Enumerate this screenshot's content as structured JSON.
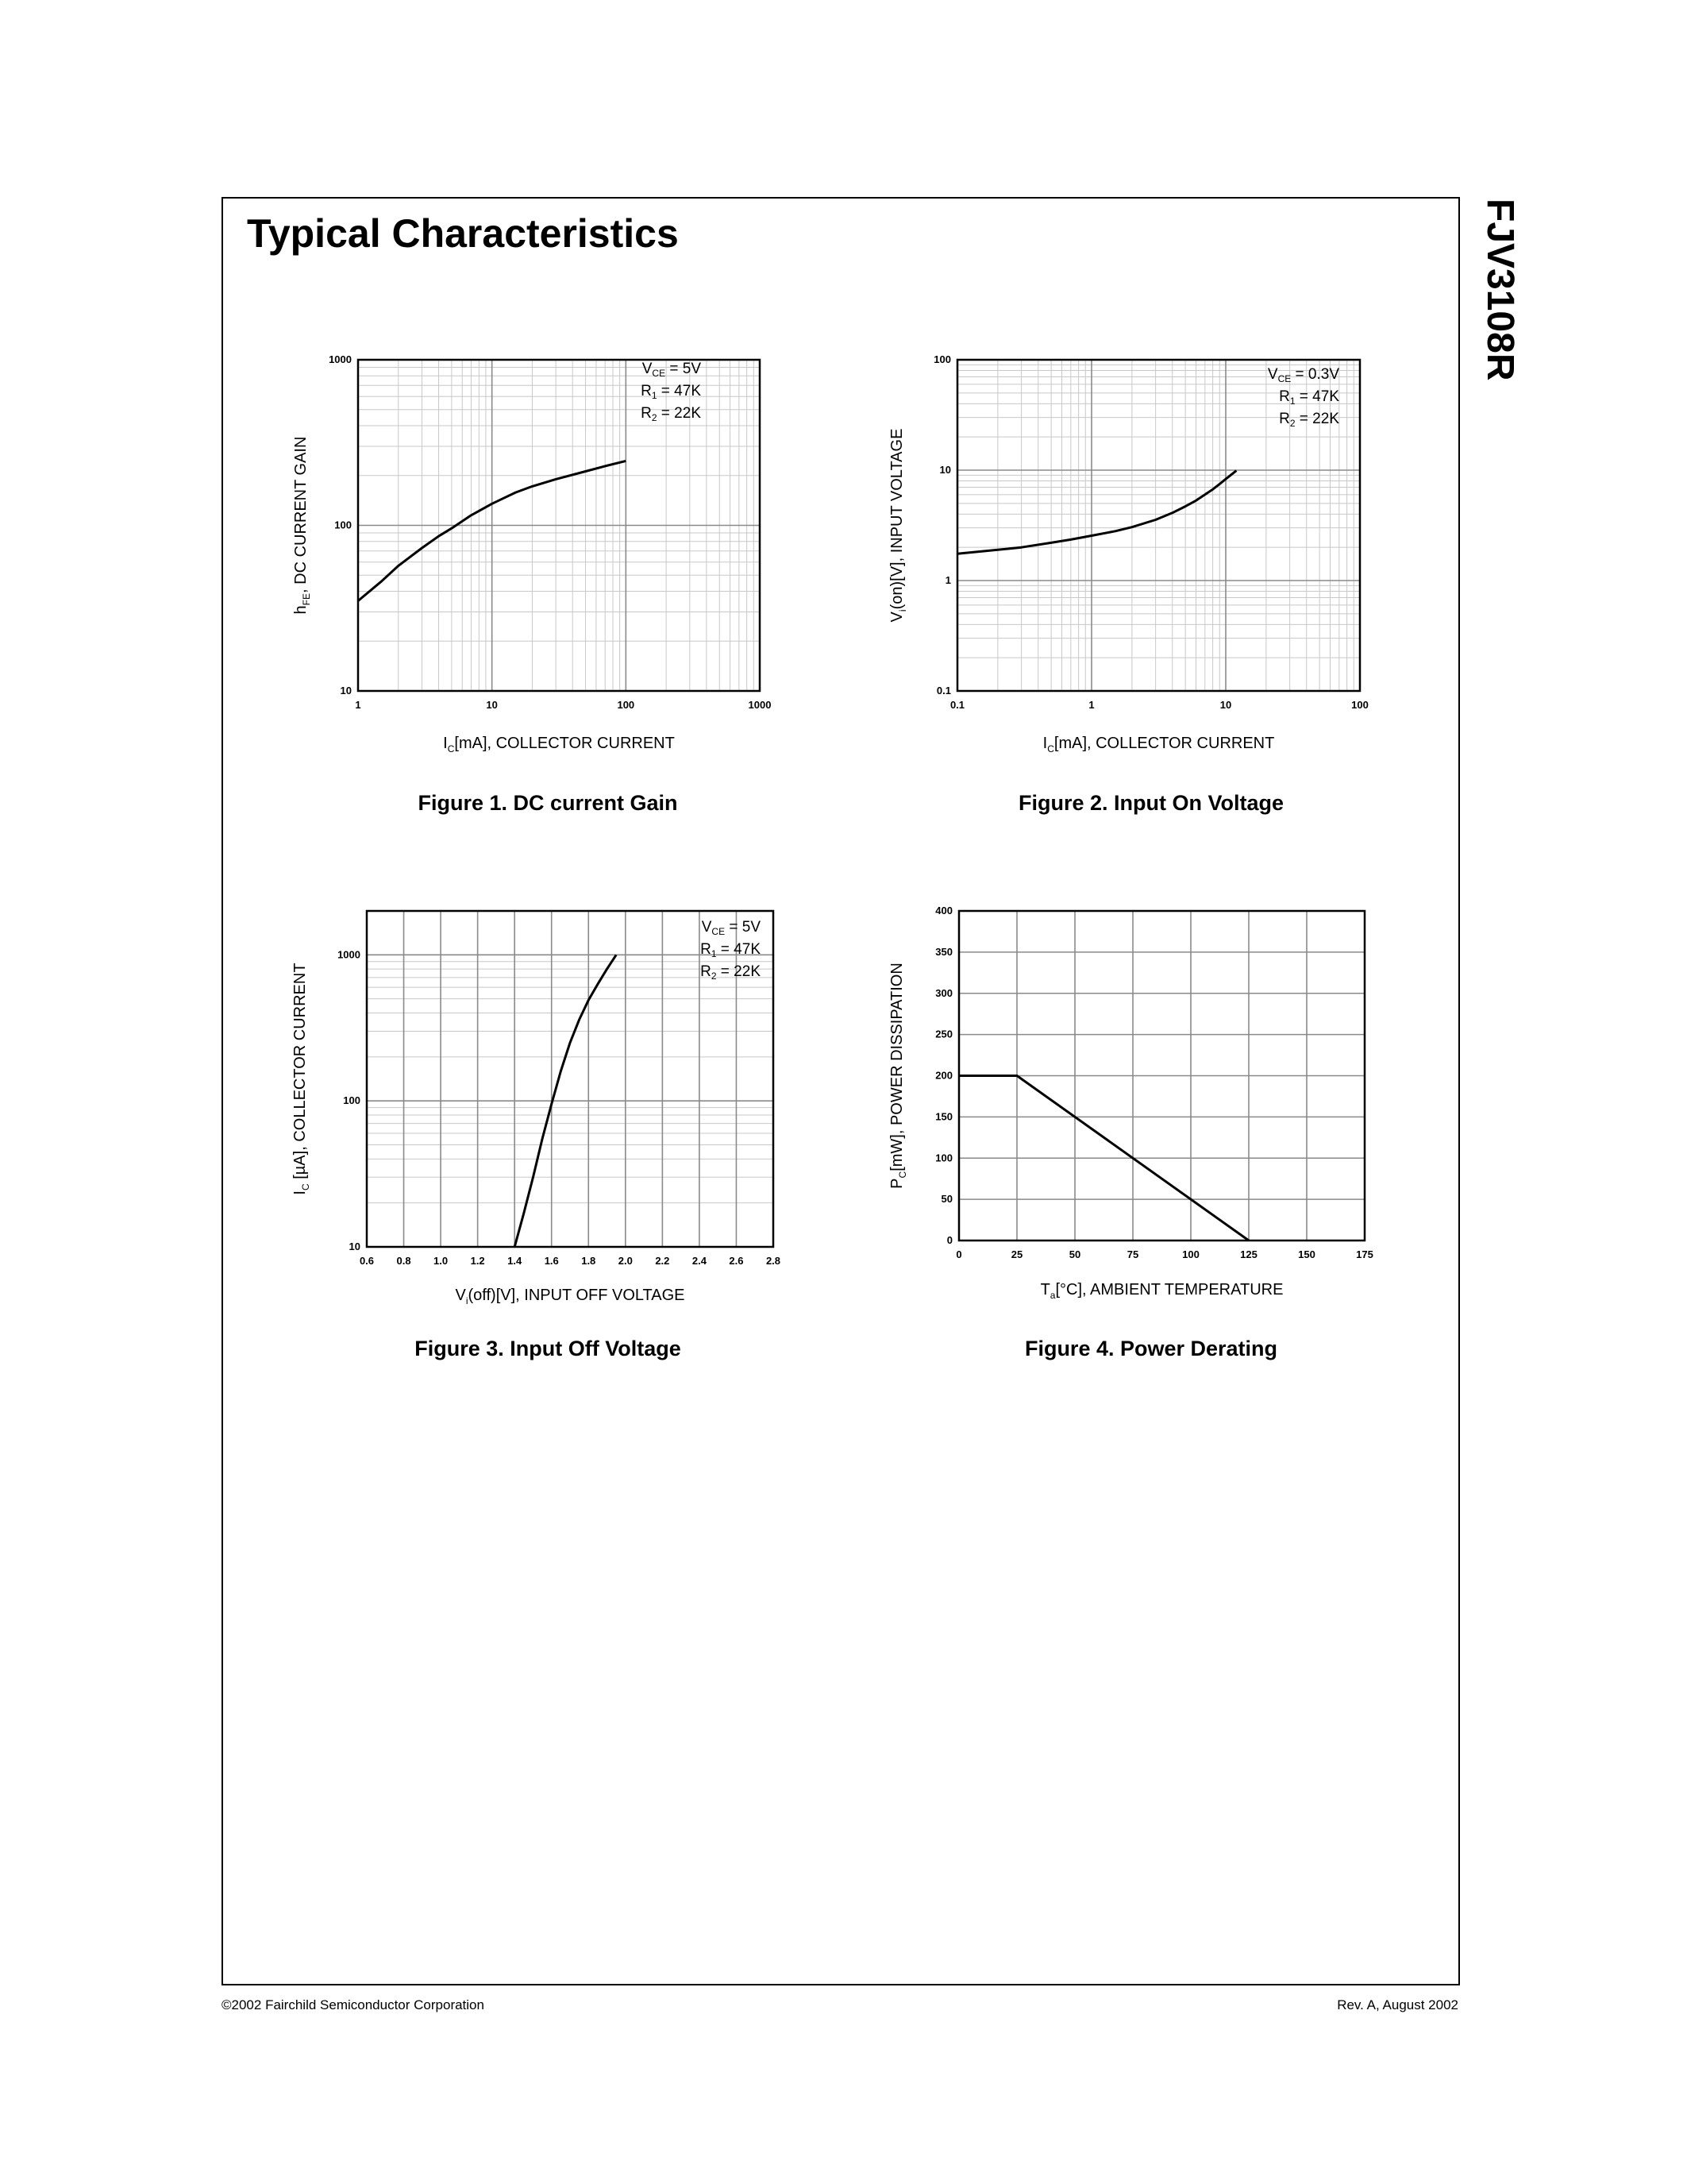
{
  "page": {
    "title": "Typical Characteristics",
    "part_number": "FJV3108R",
    "footer_left": "©2002 Fairchild Semiconductor Corporation",
    "footer_right": "Rev. A, August 2002"
  },
  "chart_data": [
    {
      "type": "line",
      "caption": "Figure 1. DC current Gain",
      "xlabel": {
        "main": "I",
        "sub": "C",
        "rest": "[mA], COLLECTOR CURRENT"
      },
      "ylabel": {
        "main": "h",
        "sub": "FE",
        "rest": ", DC CURRENT GAIN"
      },
      "x_scale": "log",
      "y_scale": "log",
      "xlim": [
        1,
        1000
      ],
      "ylim": [
        10,
        1000
      ],
      "x_ticks": [
        1,
        10,
        100,
        1000
      ],
      "y_ticks": [
        10,
        100,
        1000
      ],
      "x_tick_labels": [
        "1",
        "10",
        "100",
        "1000"
      ],
      "y_tick_labels": [
        "10",
        "100",
        "1000"
      ],
      "grid": true,
      "annotations": [
        {
          "main": "V",
          "sub": "CE",
          "rest": " = 5V"
        },
        {
          "main": "R",
          "sub": "1",
          "rest": " = 47K"
        },
        {
          "main": "R",
          "sub": "2",
          "rest": " = 22K"
        }
      ],
      "series": [
        {
          "x": [
            1,
            1.5,
            2,
            3,
            4,
            5,
            7,
            10,
            15,
            20,
            30,
            50,
            70,
            100
          ],
          "y": [
            35,
            46,
            57,
            73,
            86,
            96,
            115,
            135,
            158,
            172,
            190,
            212,
            228,
            245
          ]
        }
      ]
    },
    {
      "type": "line",
      "caption": "Figure 2. Input On Voltage",
      "xlabel": {
        "main": "I",
        "sub": "C",
        "rest": "[mA], COLLECTOR CURRENT"
      },
      "ylabel": {
        "main": "V",
        "sub": "i",
        "rest": "(on)[V], INPUT VOLTAGE"
      },
      "x_scale": "log",
      "y_scale": "log",
      "xlim": [
        0.1,
        100
      ],
      "ylim": [
        0.1,
        100
      ],
      "x_ticks": [
        0.1,
        1,
        10,
        100
      ],
      "y_ticks": [
        0.1,
        1,
        10,
        100
      ],
      "x_tick_labels": [
        "0.1",
        "1",
        "10",
        "100"
      ],
      "y_tick_labels": [
        "0.1",
        "1",
        "10",
        "100"
      ],
      "grid": true,
      "annotations": [
        {
          "main": "V",
          "sub": "CE",
          "rest": " = 0.3V"
        },
        {
          "main": "R",
          "sub": "1",
          "rest": " = 47K"
        },
        {
          "main": "R",
          "sub": "2",
          "rest": " = 22K"
        }
      ],
      "series": [
        {
          "x": [
            0.1,
            0.2,
            0.3,
            0.5,
            0.7,
            1,
            1.5,
            2,
            3,
            4,
            5,
            6,
            7,
            8,
            9,
            10,
            12
          ],
          "y": [
            1.75,
            1.9,
            2.0,
            2.2,
            2.35,
            2.55,
            2.8,
            3.05,
            3.55,
            4.1,
            4.7,
            5.3,
            6.0,
            6.7,
            7.5,
            8.3,
            9.9
          ]
        }
      ]
    },
    {
      "type": "line",
      "caption": "Figure 3. Input Off Voltage",
      "xlabel": {
        "main": "V",
        "sub": "i",
        "rest": "(off)[V], INPUT OFF VOLTAGE"
      },
      "ylabel": {
        "main": "I",
        "sub": "C",
        "rest": " [µA], COLLECTOR CURRENT"
      },
      "x_scale": "linear",
      "y_scale": "log",
      "xlim": [
        0.6,
        2.8
      ],
      "ylim": [
        10,
        2000
      ],
      "x_ticks": [
        0.6,
        0.8,
        1.0,
        1.2,
        1.4,
        1.6,
        1.8,
        2.0,
        2.2,
        2.4,
        2.6,
        2.8
      ],
      "x_tick_labels": [
        "0.6",
        "0.8",
        "1.0",
        "1.2",
        "1.4",
        "1.6",
        "1.8",
        "2.0",
        "2.2",
        "2.4",
        "2.6",
        "2.8"
      ],
      "y_ticks": [
        10,
        100,
        1000
      ],
      "y_tick_labels": [
        "10",
        "100",
        "1000"
      ],
      "grid": true,
      "annotations": [
        {
          "main": "V",
          "sub": "CE",
          "rest": " = 5V"
        },
        {
          "main": "R",
          "sub": "1",
          "rest": " = 47K"
        },
        {
          "main": "R",
          "sub": "2",
          "rest": " = 22K"
        }
      ],
      "series": [
        {
          "x": [
            1.4,
            1.45,
            1.5,
            1.55,
            1.6,
            1.65,
            1.7,
            1.75,
            1.8,
            1.85,
            1.9,
            1.95
          ],
          "y": [
            10,
            17,
            30,
            55,
            95,
            160,
            250,
            360,
            490,
            630,
            800,
            1000
          ]
        }
      ]
    },
    {
      "type": "line",
      "caption": "Figure 4. Power Derating",
      "xlabel": {
        "main": "T",
        "sub": "a",
        "rest": "[°C], AMBIENT TEMPERATURE"
      },
      "ylabel": {
        "main": "P",
        "sub": "C",
        "rest": "[mW], POWER DISSIPATION"
      },
      "x_scale": "linear",
      "y_scale": "linear",
      "xlim": [
        0,
        175
      ],
      "ylim": [
        0,
        400
      ],
      "x_ticks": [
        0,
        25,
        50,
        75,
        100,
        125,
        150,
        175
      ],
      "x_tick_labels": [
        "0",
        "25",
        "50",
        "75",
        "100",
        "125",
        "150",
        "175"
      ],
      "y_ticks": [
        0,
        50,
        100,
        150,
        200,
        250,
        300,
        350,
        400
      ],
      "y_tick_labels": [
        "0",
        "50",
        "100",
        "150",
        "200",
        "250",
        "300",
        "350",
        "400"
      ],
      "grid": true,
      "annotations": [],
      "series": [
        {
          "x": [
            0,
            25,
            125
          ],
          "y": [
            200,
            200,
            0
          ]
        }
      ]
    }
  ]
}
